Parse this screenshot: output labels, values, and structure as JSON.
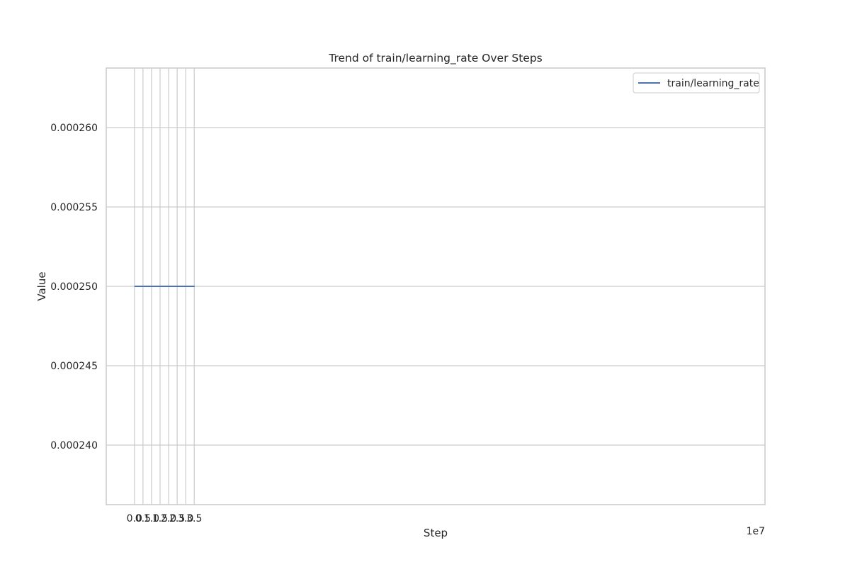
{
  "chart_data": {
    "type": "line",
    "title": "Trend of train/learning_rate Over Steps",
    "xlabel": "Step",
    "ylabel": "Value",
    "x_offset_label": "1e7",
    "xlim": [
      -1.65,
      36.9
    ],
    "ylim": [
      0.00023625,
      0.00026375
    ],
    "x_ticks": [
      {
        "value": 0.0,
        "label": "0.0"
      },
      {
        "value": 0.5,
        "label": "0.5"
      },
      {
        "value": 1.0,
        "label": "1.0"
      },
      {
        "value": 1.5,
        "label": "1.5"
      },
      {
        "value": 2.0,
        "label": "2.0"
      },
      {
        "value": 2.5,
        "label": "2.5"
      },
      {
        "value": 3.0,
        "label": "3.0"
      },
      {
        "value": 3.5,
        "label": "3.5"
      }
    ],
    "y_ticks": [
      {
        "value": 0.00024,
        "label": "0.000240"
      },
      {
        "value": 0.000245,
        "label": "0.000245"
      },
      {
        "value": 0.00025,
        "label": "0.000250"
      },
      {
        "value": 0.000255,
        "label": "0.000255"
      },
      {
        "value": 0.00026,
        "label": "0.000260"
      }
    ],
    "grid": true,
    "legend_position": "top-right",
    "series": [
      {
        "name": "train/learning_rate",
        "color": "#4c72b0",
        "x": [
          0,
          3.52
        ],
        "y": [
          0.00025,
          0.00025
        ]
      }
    ]
  }
}
